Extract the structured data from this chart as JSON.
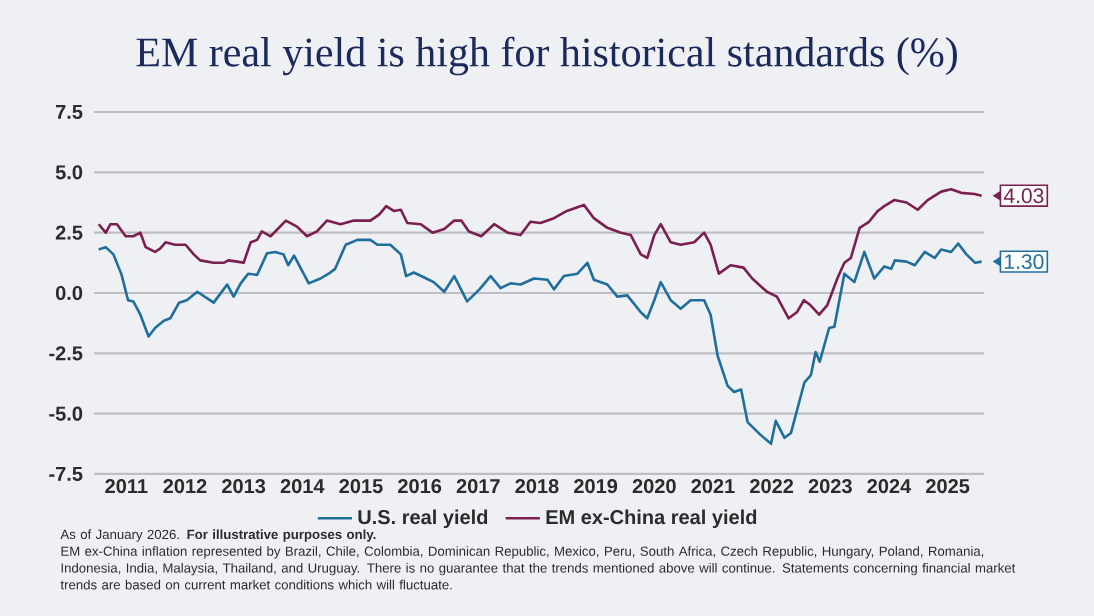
{
  "chart_data": {
    "type": "line",
    "title": "EM real yield is high for historical standards (%)",
    "xlim": [
      2010.95,
      2026.12
    ],
    "ylim": [
      -7.5,
      7.5
    ],
    "xticks": [
      {
        "value": 2011.5,
        "label": "2011"
      },
      {
        "value": 2012.5,
        "label": "2012"
      },
      {
        "value": 2013.5,
        "label": "2013"
      },
      {
        "value": 2014.5,
        "label": "2014"
      },
      {
        "value": 2015.5,
        "label": "2015"
      },
      {
        "value": 2016.5,
        "label": "2016"
      },
      {
        "value": 2017.5,
        "label": "2017"
      },
      {
        "value": 2018.5,
        "label": "2018"
      },
      {
        "value": 2019.5,
        "label": "2019"
      },
      {
        "value": 2020.5,
        "label": "2020"
      },
      {
        "value": 2021.5,
        "label": "2021"
      },
      {
        "value": 2022.5,
        "label": "2022"
      },
      {
        "value": 2023.5,
        "label": "2023"
      },
      {
        "value": 2024.5,
        "label": "2024"
      },
      {
        "value": 2025.5,
        "label": "2025"
      }
    ],
    "yticks": [
      {
        "value": 7.5,
        "label": "7.5"
      },
      {
        "value": 5,
        "label": "5.0"
      },
      {
        "value": 2.5,
        "label": "2.5"
      },
      {
        "value": 0,
        "label": "0.0"
      },
      {
        "value": -2.5,
        "label": "-2.5"
      },
      {
        "value": -5,
        "label": "-5.0"
      },
      {
        "value": -7.5,
        "label": "-7.5"
      }
    ],
    "grid": "y",
    "legend": "bottom",
    "series": [
      {
        "name": "U.S. real yield",
        "color": "#1f6e9c",
        "x": [
          2011.03,
          2011.15,
          2011.28,
          2011.42,
          2011.53,
          2011.62,
          2011.74,
          2011.88,
          2011.99,
          2012.14,
          2012.25,
          2012.4,
          2012.53,
          2012.71,
          2012.99,
          2013.22,
          2013.33,
          2013.45,
          2013.58,
          2013.73,
          2013.9,
          2014.04,
          2014.18,
          2014.26,
          2014.36,
          2014.61,
          2014.81,
          2014.95,
          2015.06,
          2015.24,
          2015.44,
          2015.66,
          2015.78,
          2016.0,
          2016.18,
          2016.27,
          2016.4,
          2016.57,
          2016.74,
          2016.92,
          2017.09,
          2017.31,
          2017.52,
          2017.71,
          2017.88,
          2018.05,
          2018.22,
          2018.45,
          2018.68,
          2018.79,
          2018.96,
          2019.19,
          2019.36,
          2019.47,
          2019.7,
          2019.87,
          2020.04,
          2020.27,
          2020.38,
          2020.5,
          2020.61,
          2020.78,
          2020.95,
          2021.12,
          2021.35,
          2021.46,
          2021.58,
          2021.75,
          2021.86,
          2021.98,
          2022.09,
          2022.32,
          2022.49,
          2022.57,
          2022.72,
          2022.83,
          2023.06,
          2023.17,
          2023.25,
          2023.32,
          2023.48,
          2023.57,
          2023.74,
          2023.91,
          2024.08,
          2024.25,
          2024.42,
          2024.54,
          2024.6,
          2024.8,
          2024.94,
          2025.11,
          2025.28,
          2025.39,
          2025.56,
          2025.68,
          2025.82,
          2025.97,
          2026.08
        ],
        "values": [
          1.8,
          1.9,
          1.6,
          0.75,
          -0.3,
          -0.35,
          -0.9,
          -1.8,
          -1.45,
          -1.15,
          -1.05,
          -0.4,
          -0.3,
          0.05,
          -0.4,
          0.35,
          -0.15,
          0.4,
          0.8,
          0.75,
          1.65,
          1.7,
          1.6,
          1.15,
          1.55,
          0.4,
          0.6,
          0.8,
          1.0,
          2.0,
          2.2,
          2.2,
          2.0,
          2.0,
          1.6,
          0.7,
          0.85,
          0.65,
          0.45,
          0.05,
          0.7,
          -0.35,
          0.15,
          0.7,
          0.2,
          0.4,
          0.35,
          0.6,
          0.55,
          0.15,
          0.7,
          0.8,
          1.25,
          0.55,
          0.35,
          -0.15,
          -0.1,
          -0.8,
          -1.05,
          -0.3,
          0.45,
          -0.3,
          -0.65,
          -0.3,
          -0.3,
          -0.9,
          -2.6,
          -3.85,
          -4.1,
          -4.0,
          -5.35,
          -5.9,
          -6.25,
          -5.3,
          -6.0,
          -5.8,
          -3.7,
          -3.4,
          -2.45,
          -2.85,
          -1.45,
          -1.4,
          0.8,
          0.45,
          1.7,
          0.6,
          1.1,
          1.0,
          1.35,
          1.3,
          1.15,
          1.7,
          1.45,
          1.8,
          1.7,
          2.05,
          1.6,
          1.25,
          1.3
        ]
      },
      {
        "name": "EM ex-China real yield",
        "color": "#7b1f52",
        "x": [
          2011.03,
          2011.15,
          2011.23,
          2011.34,
          2011.49,
          2011.62,
          2011.74,
          2011.83,
          2011.99,
          2012.08,
          2012.17,
          2012.33,
          2012.51,
          2012.65,
          2012.76,
          2012.99,
          2013.16,
          2013.24,
          2013.39,
          2013.5,
          2013.62,
          2013.73,
          2013.81,
          2013.96,
          2014.22,
          2014.41,
          2014.58,
          2014.75,
          2014.92,
          2015.15,
          2015.38,
          2015.66,
          2015.81,
          2015.93,
          2016.06,
          2016.18,
          2016.29,
          2016.52,
          2016.72,
          2016.92,
          2017.09,
          2017.21,
          2017.34,
          2017.55,
          2017.77,
          2018.0,
          2018.22,
          2018.39,
          2018.56,
          2018.79,
          2019.01,
          2019.3,
          2019.47,
          2019.7,
          2019.93,
          2020.1,
          2020.27,
          2020.38,
          2020.5,
          2020.61,
          2020.78,
          2020.95,
          2021.18,
          2021.35,
          2021.46,
          2021.6,
          2021.8,
          2022.02,
          2022.17,
          2022.42,
          2022.59,
          2022.79,
          2022.93,
          2023.05,
          2023.16,
          2023.31,
          2023.45,
          2023.62,
          2023.74,
          2023.85,
          2024.0,
          2024.16,
          2024.31,
          2024.42,
          2024.59,
          2024.8,
          2024.99,
          2025.16,
          2025.39,
          2025.56,
          2025.73,
          2025.96,
          2026.08
        ],
        "values": [
          2.85,
          2.5,
          2.85,
          2.85,
          2.35,
          2.35,
          2.5,
          1.9,
          1.7,
          1.85,
          2.1,
          2.0,
          2.0,
          1.6,
          1.35,
          1.25,
          1.25,
          1.35,
          1.3,
          1.25,
          2.1,
          2.2,
          2.55,
          2.35,
          3.0,
          2.75,
          2.35,
          2.55,
          3.0,
          2.85,
          3.0,
          3.0,
          3.25,
          3.6,
          3.4,
          3.45,
          2.9,
          2.85,
          2.5,
          2.65,
          3.0,
          3.0,
          2.55,
          2.35,
          2.85,
          2.5,
          2.4,
          2.95,
          2.9,
          3.1,
          3.4,
          3.65,
          3.1,
          2.7,
          2.5,
          2.4,
          1.6,
          1.45,
          2.4,
          2.85,
          2.1,
          2.0,
          2.1,
          2.5,
          2.0,
          0.8,
          1.15,
          1.05,
          0.6,
          0.05,
          -0.15,
          -1.05,
          -0.8,
          -0.3,
          -0.5,
          -0.9,
          -0.5,
          0.6,
          1.25,
          1.45,
          2.7,
          2.95,
          3.4,
          3.6,
          3.85,
          3.75,
          3.45,
          3.85,
          4.2,
          4.3,
          4.15,
          4.1,
          4.03
        ]
      }
    ],
    "annotations": [
      {
        "text": "4.03",
        "x": 2026.08,
        "y": 4.03
      },
      {
        "text": "1.30",
        "x": 2026.08,
        "y": 1.3
      },
      "As of January 2026. **For illustrative purposes only.**",
      "EM ex-China inflation represented by Brazil, Chile, Colombia, Dominican Republic, Mexico, Peru, South Africa, Czech Republic, Hungary, Poland, Romania, Indonesia, India, Malaysia, Thailand, and Uruguay. There is no guarantee that the trends mentioned above will continue. Statements concerning financial market trends are based on current market conditions which will fluctuate."
    ]
  }
}
